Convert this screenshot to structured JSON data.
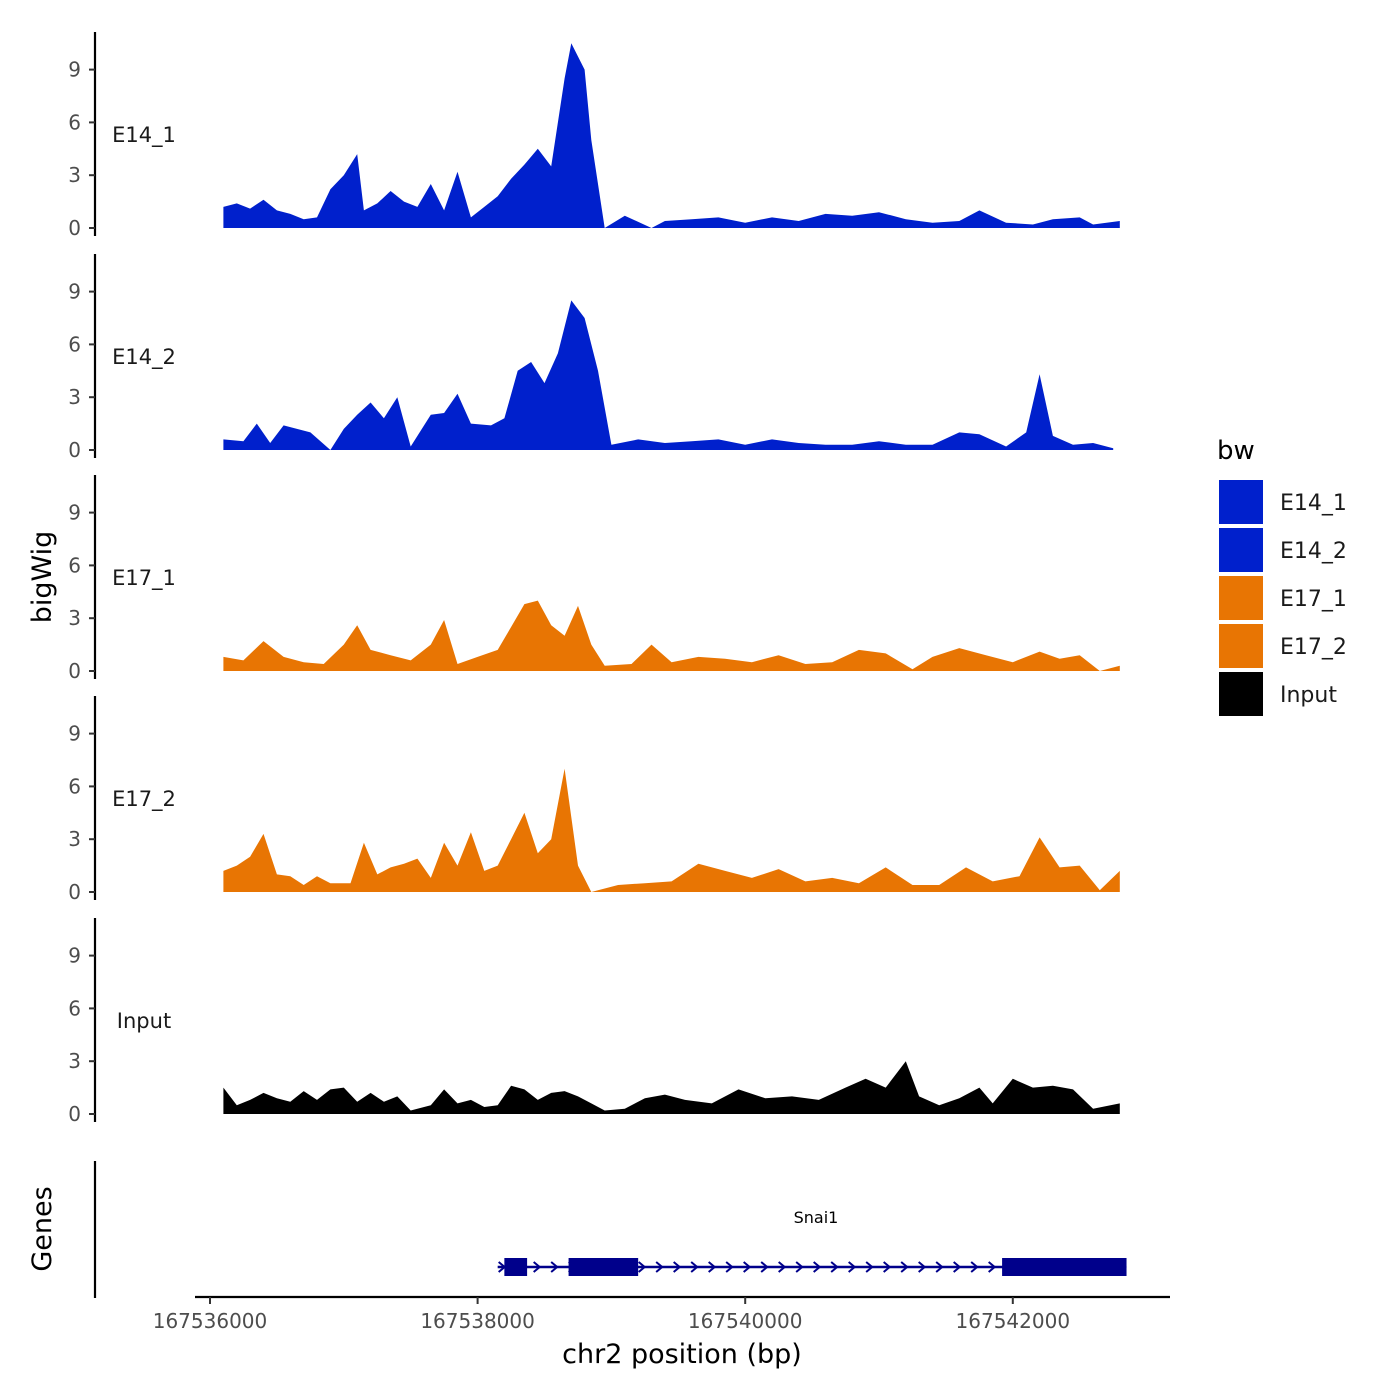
{
  "chart_data": {
    "type": "area",
    "ylabel": "bigWig",
    "xlabel": "chr2 position (bp)",
    "x_range": [
      167536000,
      167542850
    ],
    "ylim": [
      0,
      11
    ],
    "yticks": [
      0,
      3,
      6,
      9
    ],
    "xticks": [
      167536000,
      167538000,
      167540000,
      167542000
    ],
    "xtick_labels": [
      "167536000",
      "167538000",
      "167540000",
      "167542000"
    ],
    "tracks": [
      {
        "name": "E14_1",
        "color": "#0020CC",
        "points": [
          [
            167536100,
            1.2
          ],
          [
            167536200,
            1.4
          ],
          [
            167536300,
            1.1
          ],
          [
            167536400,
            1.6
          ],
          [
            167536500,
            1.0
          ],
          [
            167536600,
            0.8
          ],
          [
            167536700,
            0.5
          ],
          [
            167536800,
            0.6
          ],
          [
            167536900,
            2.2
          ],
          [
            167537000,
            3.0
          ],
          [
            167537100,
            4.2
          ],
          [
            167537150,
            1.0
          ],
          [
            167537250,
            1.4
          ],
          [
            167537350,
            2.1
          ],
          [
            167537450,
            1.5
          ],
          [
            167537550,
            1.2
          ],
          [
            167537650,
            2.5
          ],
          [
            167537750,
            1.0
          ],
          [
            167537850,
            3.2
          ],
          [
            167537950,
            0.6
          ],
          [
            167538050,
            1.2
          ],
          [
            167538150,
            1.8
          ],
          [
            167538250,
            2.8
          ],
          [
            167538350,
            3.6
          ],
          [
            167538450,
            4.5
          ],
          [
            167538550,
            3.5
          ],
          [
            167538650,
            8.5
          ],
          [
            167538700,
            10.5
          ],
          [
            167538800,
            9.0
          ],
          [
            167538850,
            5.0
          ],
          [
            167538950,
            0.0
          ],
          [
            167539100,
            0.7
          ],
          [
            167539300,
            0.0
          ],
          [
            167539400,
            0.4
          ],
          [
            167539600,
            0.5
          ],
          [
            167539800,
            0.6
          ],
          [
            167540000,
            0.3
          ],
          [
            167540200,
            0.6
          ],
          [
            167540400,
            0.4
          ],
          [
            167540600,
            0.8
          ],
          [
            167540800,
            0.7
          ],
          [
            167541000,
            0.9
          ],
          [
            167541200,
            0.5
          ],
          [
            167541400,
            0.3
          ],
          [
            167541600,
            0.4
          ],
          [
            167541750,
            1.0
          ],
          [
            167541950,
            0.3
          ],
          [
            167542150,
            0.2
          ],
          [
            167542300,
            0.5
          ],
          [
            167542500,
            0.6
          ],
          [
            167542600,
            0.2
          ],
          [
            167542800,
            0.4
          ]
        ]
      },
      {
        "name": "E14_2",
        "color": "#0020CC",
        "points": [
          [
            167536100,
            0.6
          ],
          [
            167536250,
            0.5
          ],
          [
            167536350,
            1.5
          ],
          [
            167536450,
            0.4
          ],
          [
            167536550,
            1.4
          ],
          [
            167536650,
            1.2
          ],
          [
            167536750,
            1.0
          ],
          [
            167536900,
            0.0
          ],
          [
            167537000,
            1.2
          ],
          [
            167537100,
            2.0
          ],
          [
            167537200,
            2.7
          ],
          [
            167537300,
            1.8
          ],
          [
            167537400,
            3.0
          ],
          [
            167537500,
            0.2
          ],
          [
            167537650,
            2.0
          ],
          [
            167537750,
            2.1
          ],
          [
            167537850,
            3.2
          ],
          [
            167537950,
            1.5
          ],
          [
            167538100,
            1.4
          ],
          [
            167538200,
            1.8
          ],
          [
            167538300,
            4.5
          ],
          [
            167538400,
            5.0
          ],
          [
            167538500,
            3.8
          ],
          [
            167538600,
            5.5
          ],
          [
            167538700,
            8.5
          ],
          [
            167538800,
            7.5
          ],
          [
            167538900,
            4.5
          ],
          [
            167539000,
            0.3
          ],
          [
            167539200,
            0.6
          ],
          [
            167539400,
            0.4
          ],
          [
            167539600,
            0.5
          ],
          [
            167539800,
            0.6
          ],
          [
            167540000,
            0.3
          ],
          [
            167540200,
            0.6
          ],
          [
            167540400,
            0.4
          ],
          [
            167540600,
            0.3
          ],
          [
            167540800,
            0.3
          ],
          [
            167541000,
            0.5
          ],
          [
            167541200,
            0.3
          ],
          [
            167541400,
            0.3
          ],
          [
            167541600,
            1.0
          ],
          [
            167541750,
            0.9
          ],
          [
            167541950,
            0.2
          ],
          [
            167542100,
            1.0
          ],
          [
            167542200,
            4.3
          ],
          [
            167542300,
            0.8
          ],
          [
            167542450,
            0.3
          ],
          [
            167542600,
            0.4
          ],
          [
            167542750,
            0.1
          ]
        ]
      },
      {
        "name": "E17_1",
        "color": "#E87503",
        "points": [
          [
            167536100,
            0.8
          ],
          [
            167536250,
            0.6
          ],
          [
            167536400,
            1.7
          ],
          [
            167536550,
            0.8
          ],
          [
            167536700,
            0.5
          ],
          [
            167536850,
            0.4
          ],
          [
            167537000,
            1.5
          ],
          [
            167537100,
            2.6
          ],
          [
            167537200,
            1.2
          ],
          [
            167537350,
            0.9
          ],
          [
            167537500,
            0.6
          ],
          [
            167537650,
            1.5
          ],
          [
            167537750,
            2.9
          ],
          [
            167537850,
            0.4
          ],
          [
            167538000,
            0.8
          ],
          [
            167538150,
            1.2
          ],
          [
            167538250,
            2.5
          ],
          [
            167538350,
            3.8
          ],
          [
            167538450,
            4.0
          ],
          [
            167538550,
            2.6
          ],
          [
            167538650,
            2.0
          ],
          [
            167538750,
            3.7
          ],
          [
            167538850,
            1.5
          ],
          [
            167538950,
            0.3
          ],
          [
            167539150,
            0.4
          ],
          [
            167539300,
            1.5
          ],
          [
            167539450,
            0.5
          ],
          [
            167539650,
            0.8
          ],
          [
            167539850,
            0.7
          ],
          [
            167540050,
            0.5
          ],
          [
            167540250,
            0.9
          ],
          [
            167540450,
            0.4
          ],
          [
            167540650,
            0.5
          ],
          [
            167540850,
            1.2
          ],
          [
            167541050,
            1.0
          ],
          [
            167541250,
            0.1
          ],
          [
            167541400,
            0.8
          ],
          [
            167541600,
            1.3
          ],
          [
            167541800,
            0.9
          ],
          [
            167542000,
            0.5
          ],
          [
            167542200,
            1.1
          ],
          [
            167542350,
            0.7
          ],
          [
            167542500,
            0.9
          ],
          [
            167542650,
            0.0
          ],
          [
            167542800,
            0.3
          ]
        ]
      },
      {
        "name": "E17_2",
        "color": "#E87503",
        "points": [
          [
            167536100,
            1.2
          ],
          [
            167536200,
            1.5
          ],
          [
            167536300,
            2.0
          ],
          [
            167536400,
            3.3
          ],
          [
            167536500,
            1.0
          ],
          [
            167536600,
            0.9
          ],
          [
            167536700,
            0.4
          ],
          [
            167536800,
            0.9
          ],
          [
            167536900,
            0.5
          ],
          [
            167537050,
            0.5
          ],
          [
            167537150,
            2.8
          ],
          [
            167537250,
            1.0
          ],
          [
            167537350,
            1.4
          ],
          [
            167537450,
            1.6
          ],
          [
            167537550,
            1.9
          ],
          [
            167537650,
            0.8
          ],
          [
            167537750,
            2.8
          ],
          [
            167537850,
            1.5
          ],
          [
            167537950,
            3.4
          ],
          [
            167538050,
            1.2
          ],
          [
            167538150,
            1.5
          ],
          [
            167538250,
            3.0
          ],
          [
            167538350,
            4.5
          ],
          [
            167538450,
            2.2
          ],
          [
            167538550,
            3.0
          ],
          [
            167538650,
            7.0
          ],
          [
            167538750,
            1.5
          ],
          [
            167538850,
            0.0
          ],
          [
            167539050,
            0.4
          ],
          [
            167539250,
            0.5
          ],
          [
            167539450,
            0.6
          ],
          [
            167539650,
            1.6
          ],
          [
            167539850,
            1.2
          ],
          [
            167540050,
            0.8
          ],
          [
            167540250,
            1.3
          ],
          [
            167540450,
            0.6
          ],
          [
            167540650,
            0.8
          ],
          [
            167540850,
            0.5
          ],
          [
            167541050,
            1.4
          ],
          [
            167541250,
            0.4
          ],
          [
            167541450,
            0.4
          ],
          [
            167541650,
            1.4
          ],
          [
            167541850,
            0.6
          ],
          [
            167542050,
            0.9
          ],
          [
            167542200,
            3.1
          ],
          [
            167542350,
            1.4
          ],
          [
            167542500,
            1.5
          ],
          [
            167542650,
            0.1
          ],
          [
            167542800,
            1.2
          ]
        ]
      },
      {
        "name": "Input",
        "color": "#000000",
        "points": [
          [
            167536100,
            1.5
          ],
          [
            167536200,
            0.5
          ],
          [
            167536300,
            0.8
          ],
          [
            167536400,
            1.2
          ],
          [
            167536500,
            0.9
          ],
          [
            167536600,
            0.7
          ],
          [
            167536700,
            1.3
          ],
          [
            167536800,
            0.8
          ],
          [
            167536900,
            1.4
          ],
          [
            167537000,
            1.5
          ],
          [
            167537100,
            0.7
          ],
          [
            167537200,
            1.2
          ],
          [
            167537300,
            0.7
          ],
          [
            167537400,
            1.0
          ],
          [
            167537500,
            0.2
          ],
          [
            167537650,
            0.5
          ],
          [
            167537750,
            1.4
          ],
          [
            167537850,
            0.6
          ],
          [
            167537950,
            0.8
          ],
          [
            167538050,
            0.4
          ],
          [
            167538150,
            0.5
          ],
          [
            167538250,
            1.6
          ],
          [
            167538350,
            1.4
          ],
          [
            167538450,
            0.8
          ],
          [
            167538550,
            1.2
          ],
          [
            167538650,
            1.3
          ],
          [
            167538750,
            1.0
          ],
          [
            167538850,
            0.6
          ],
          [
            167538950,
            0.2
          ],
          [
            167539100,
            0.3
          ],
          [
            167539250,
            0.9
          ],
          [
            167539400,
            1.1
          ],
          [
            167539550,
            0.8
          ],
          [
            167539750,
            0.6
          ],
          [
            167539950,
            1.4
          ],
          [
            167540150,
            0.9
          ],
          [
            167540350,
            1.0
          ],
          [
            167540550,
            0.8
          ],
          [
            167540750,
            1.5
          ],
          [
            167540900,
            2.0
          ],
          [
            167541050,
            1.5
          ],
          [
            167541200,
            3.0
          ],
          [
            167541300,
            1.0
          ],
          [
            167541450,
            0.5
          ],
          [
            167541600,
            0.9
          ],
          [
            167541750,
            1.5
          ],
          [
            167541850,
            0.6
          ],
          [
            167542000,
            2.0
          ],
          [
            167542150,
            1.5
          ],
          [
            167542300,
            1.6
          ],
          [
            167542450,
            1.4
          ],
          [
            167542600,
            0.3
          ],
          [
            167542800,
            0.6
          ]
        ]
      }
    ],
    "gene_track": {
      "ylabel": "Genes",
      "gene": "Snai1",
      "color": "#00008B",
      "strand": "+",
      "start": 167538150,
      "end": 167542850,
      "exons": [
        [
          167538200,
          167538370
        ],
        [
          167538680,
          167539200
        ],
        [
          167541920,
          167542850
        ]
      ]
    },
    "legend": {
      "title": "bw",
      "position": "right",
      "entries": [
        {
          "label": "E14_1",
          "color": "#0020CC"
        },
        {
          "label": "E14_2",
          "color": "#0020CC"
        },
        {
          "label": "E17_1",
          "color": "#E87503"
        },
        {
          "label": "E17_2",
          "color": "#E87503"
        },
        {
          "label": "Input",
          "color": "#000000"
        }
      ]
    }
  }
}
